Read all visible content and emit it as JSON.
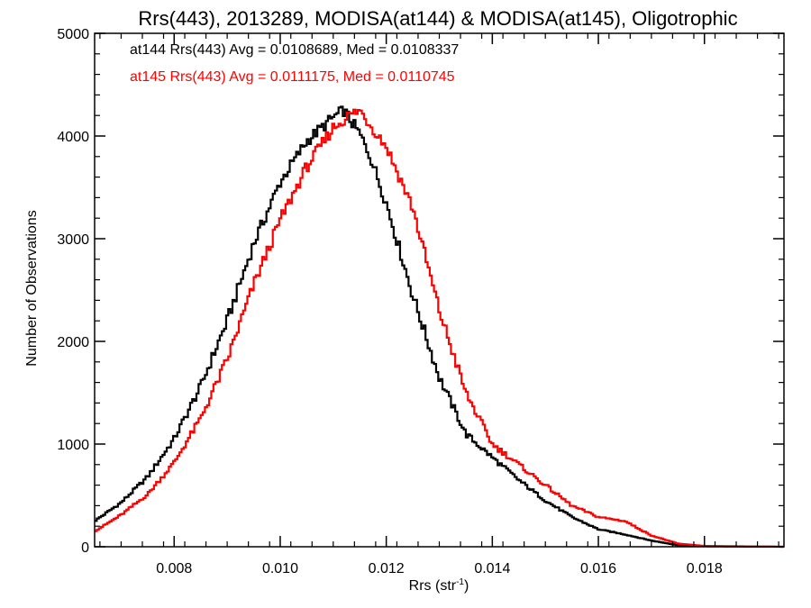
{
  "chart_data": {
    "type": "line",
    "title": "Rrs(443), 2013289, MODISA(at144) & MODISA(at145), Oligotrophic",
    "xlabel_main": "Rrs (str",
    "xlabel_sup": "-1",
    "xlabel_close": ")",
    "ylabel": "Number of Observations",
    "xlim": [
      0.0065,
      0.0195
    ],
    "ylim": [
      0,
      5000
    ],
    "x_ticks": [
      0.008,
      0.01,
      0.012,
      0.014,
      0.016,
      0.018
    ],
    "x_tick_labels": [
      "0.008",
      "0.010",
      "0.012",
      "0.014",
      "0.016",
      "0.018"
    ],
    "y_ticks": [
      0,
      1000,
      2000,
      3000,
      4000,
      5000
    ],
    "y_tick_labels": [
      "0",
      "1000",
      "2000",
      "3000",
      "4000",
      "5000"
    ],
    "grid": false,
    "legend_position": "top-left",
    "series": [
      {
        "name": "at144 Rrs(443) Avg = 0.0108689, Med = 0.0108337",
        "color": "#000000",
        "points": [
          [
            0.0065,
            250
          ],
          [
            0.007,
            430
          ],
          [
            0.0075,
            680
          ],
          [
            0.008,
            1050
          ],
          [
            0.0085,
            1560
          ],
          [
            0.009,
            2200
          ],
          [
            0.0095,
            2950
          ],
          [
            0.01,
            3550
          ],
          [
            0.0105,
            3950
          ],
          [
            0.011,
            4180
          ],
          [
            0.0112,
            4250
          ],
          [
            0.0115,
            4020
          ],
          [
            0.0117,
            3800
          ],
          [
            0.012,
            3350
          ],
          [
            0.0125,
            2450
          ],
          [
            0.013,
            1650
          ],
          [
            0.0135,
            1100
          ],
          [
            0.014,
            870
          ],
          [
            0.0145,
            650
          ],
          [
            0.015,
            450
          ],
          [
            0.0155,
            290
          ],
          [
            0.016,
            170
          ],
          [
            0.0165,
            120
          ],
          [
            0.017,
            60
          ],
          [
            0.0175,
            15
          ],
          [
            0.018,
            5
          ],
          [
            0.0195,
            0
          ]
        ]
      },
      {
        "name": "at145 Rrs(443) Avg = 0.0111175, Med = 0.0110745",
        "color": "#ff0000",
        "points": [
          [
            0.0065,
            150
          ],
          [
            0.007,
            310
          ],
          [
            0.0075,
            510
          ],
          [
            0.008,
            820
          ],
          [
            0.0085,
            1250
          ],
          [
            0.009,
            1820
          ],
          [
            0.0095,
            2550
          ],
          [
            0.01,
            3180
          ],
          [
            0.0105,
            3700
          ],
          [
            0.011,
            4080
          ],
          [
            0.0113,
            4200
          ],
          [
            0.0115,
            4250
          ],
          [
            0.012,
            3900
          ],
          [
            0.0125,
            3300
          ],
          [
            0.013,
            2300
          ],
          [
            0.0135,
            1500
          ],
          [
            0.014,
            1000
          ],
          [
            0.0145,
            800
          ],
          [
            0.015,
            600
          ],
          [
            0.0155,
            400
          ],
          [
            0.016,
            290
          ],
          [
            0.0165,
            250
          ],
          [
            0.017,
            110
          ],
          [
            0.0175,
            30
          ],
          [
            0.018,
            8
          ],
          [
            0.0195,
            0
          ]
        ]
      }
    ]
  }
}
